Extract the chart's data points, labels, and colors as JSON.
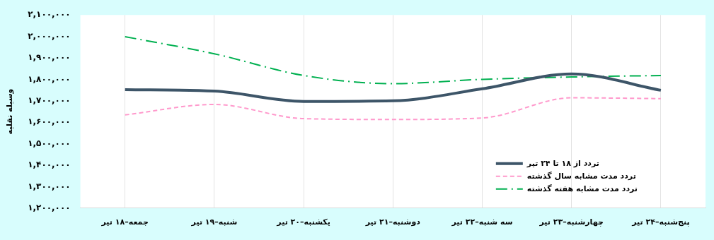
{
  "chart_data": {
    "type": "line",
    "ylabel": "وسیله نقلیه",
    "categories": [
      "جمعه–۱۸ تیر",
      "شنبه–۱۹ تیر",
      "یکشنبه–۲۰ تیر",
      "دوشنبه–۲۱ تیر",
      "سه شنبه–۲۲ تیر",
      "چهارشنبه–۲۳ تیر",
      "پنج‌شنبه–۲۴ تیر"
    ],
    "series": [
      {
        "name": "تردد از ۱۸ تا ۲۴ تیر",
        "color": "#3d5568",
        "line_style": "solid",
        "values": [
          1752000,
          1745000,
          1697000,
          1700000,
          1756000,
          1825000,
          1749000
        ]
      },
      {
        "name": "تردد مدت مشابه سال گذشته",
        "color": "#ff99cc",
        "line_style": "dashed",
        "values": [
          1634000,
          1683000,
          1617000,
          1613000,
          1620000,
          1714000,
          1710000
        ]
      },
      {
        "name": "تردد مدت مشابه هفته گذشته",
        "color": "#00b050",
        "line_style": "dashdot",
        "values": [
          1999000,
          1919000,
          1818000,
          1780000,
          1800000,
          1811000,
          1818000
        ]
      }
    ],
    "ylim": [
      1200000,
      2100000
    ],
    "yticks": [
      {
        "value": 1200000,
        "label": "۱,۲۰۰,۰۰۰"
      },
      {
        "value": 1300000,
        "label": "۱,۳۰۰,۰۰۰"
      },
      {
        "value": 1400000,
        "label": "۱,۴۰۰,۰۰۰"
      },
      {
        "value": 1500000,
        "label": "۱,۵۰۰,۰۰۰"
      },
      {
        "value": 1600000,
        "label": "۱,۶۰۰,۰۰۰"
      },
      {
        "value": 1700000,
        "label": "۱,۷۰۰,۰۰۰"
      },
      {
        "value": 1800000,
        "label": "۱,۸۰۰,۰۰۰"
      },
      {
        "value": 1900000,
        "label": "۱,۹۰۰,۰۰۰"
      },
      {
        "value": 2000000,
        "label": "۲,۰۰۰,۰۰۰"
      },
      {
        "value": 2100000,
        "label": "۲,۱۰۰,۰۰۰"
      }
    ],
    "grid": "x",
    "legend": "bottom right",
    "marker": "none"
  }
}
